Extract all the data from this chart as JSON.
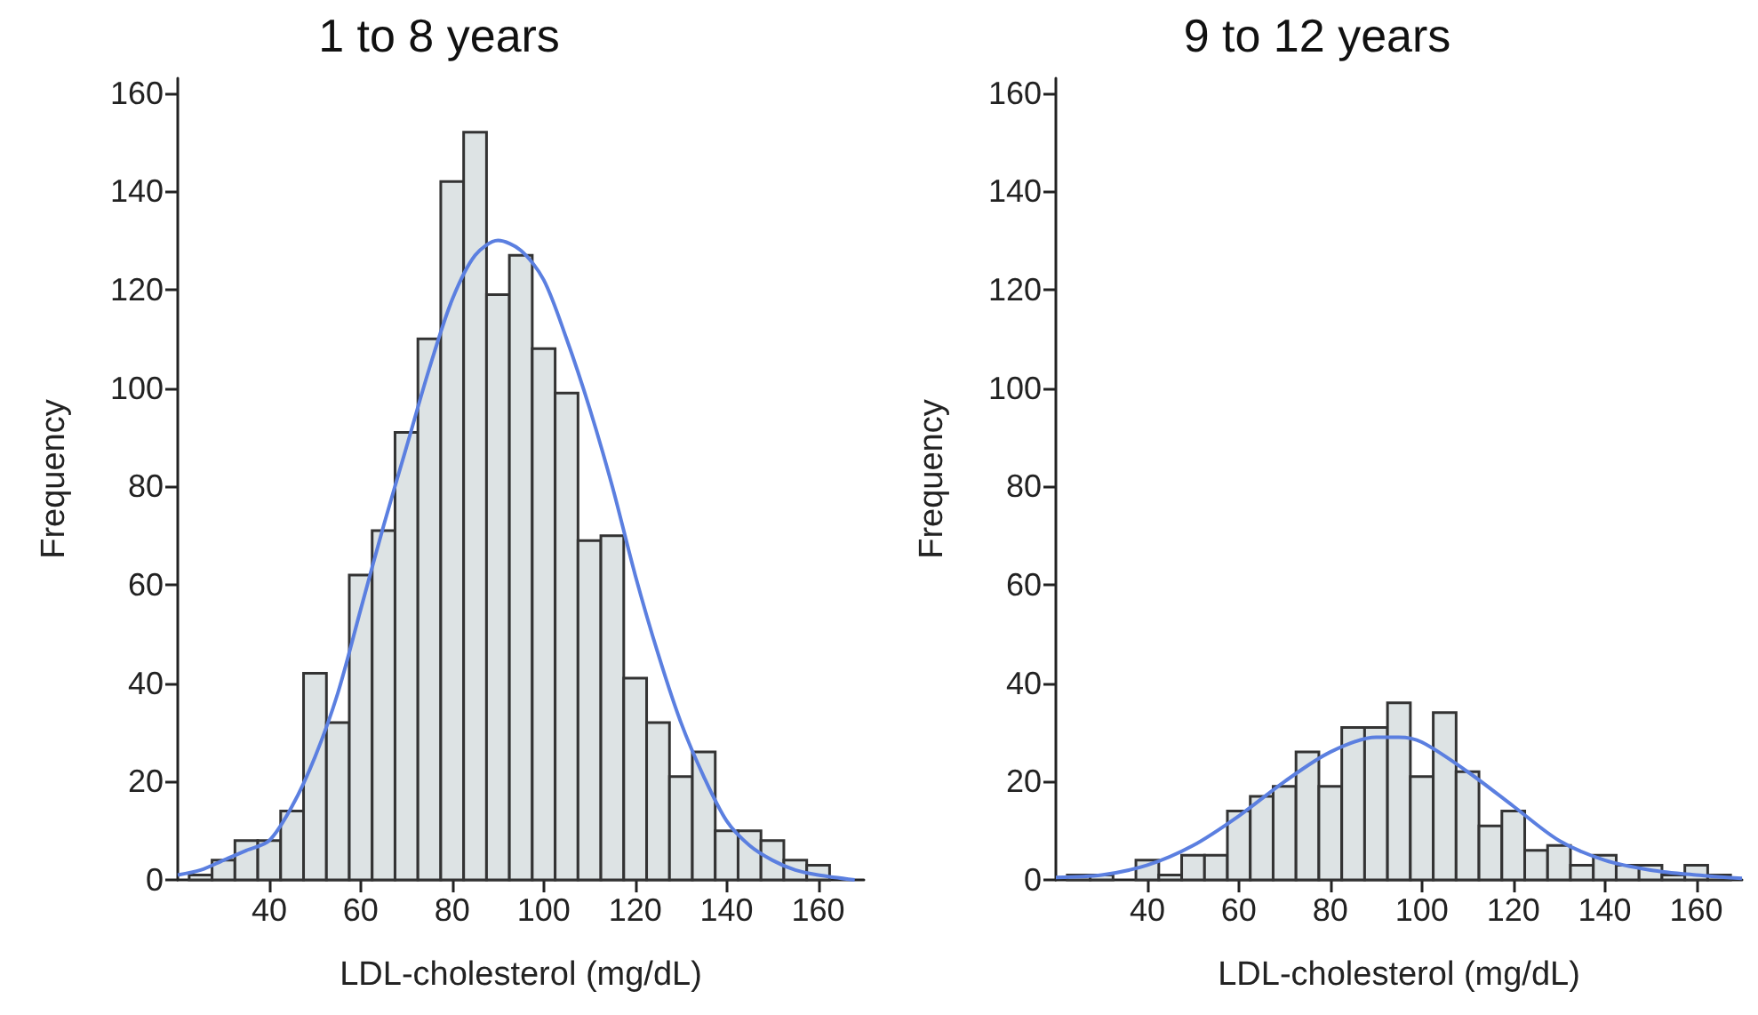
{
  "chart_data": [
    {
      "type": "histogram",
      "title": "1 to 8 years",
      "xlabel": "LDL-cholesterol (mg/dL)",
      "ylabel": "Frequency",
      "xlim": [
        20,
        170
      ],
      "xticks": [
        40,
        60,
        80,
        100,
        120,
        140,
        160
      ],
      "ylim": [
        0,
        163
      ],
      "yticks": [
        0,
        20,
        40,
        60,
        80,
        100,
        120,
        140,
        160
      ],
      "series": [
        {
          "color": "#dde3e4",
          "bins": [
            22.5,
            27.5,
            32.5,
            37.5,
            42.5,
            47.5,
            52.5,
            57.5,
            62.5,
            67.5,
            72.5,
            77.5,
            82.5,
            87.5,
            92.5,
            97.5,
            102.5,
            107.5,
            112.5,
            117.5,
            122.5,
            127.5,
            132.5,
            137.5,
            142.5,
            147.5,
            152.5,
            157.5,
            162.5
          ],
          "values": [
            1,
            4,
            8,
            8,
            14,
            42,
            32,
            62,
            71,
            91,
            110,
            142,
            152,
            119,
            127,
            108,
            99,
            69,
            70,
            41,
            32,
            21,
            26,
            10,
            10,
            8,
            4,
            3
          ]
        },
        {
          "type": "line",
          "color": "#5b7fe0",
          "x": [
            20,
            25,
            30,
            35,
            40,
            45,
            50,
            55,
            60,
            65,
            70,
            75,
            80,
            85,
            90,
            95,
            100,
            105,
            110,
            115,
            120,
            125,
            130,
            135,
            140,
            145,
            150,
            155,
            160,
            168
          ],
          "values": [
            1,
            2,
            4,
            6,
            8,
            15,
            25,
            38,
            55,
            72,
            88,
            104,
            118,
            127,
            130,
            128,
            122,
            110,
            96,
            80,
            62,
            46,
            32,
            21,
            12,
            7,
            4,
            2,
            1,
            0
          ]
        }
      ]
    },
    {
      "type": "histogram",
      "title": "9 to 12 years",
      "xlabel": "LDL-cholesterol (mg/dL)",
      "ylabel": "Frequency",
      "xlim": [
        20,
        170
      ],
      "xticks": [
        40,
        60,
        80,
        100,
        120,
        140,
        160
      ],
      "ylim": [
        0,
        163
      ],
      "yticks": [
        0,
        20,
        40,
        60,
        80,
        100,
        120,
        140,
        160
      ],
      "series": [
        {
          "color": "#dde3e4",
          "bins": [
            22.5,
            27.5,
            32.5,
            37.5,
            42.5,
            47.5,
            52.5,
            57.5,
            62.5,
            67.5,
            72.5,
            77.5,
            82.5,
            87.5,
            92.5,
            97.5,
            102.5,
            107.5,
            112.5,
            117.5,
            122.5,
            127.5,
            132.5,
            137.5,
            142.5,
            147.5,
            152.5,
            157.5,
            162.5,
            167.5
          ],
          "values": [
            1,
            1,
            0,
            4,
            1,
            5,
            5,
            14,
            17,
            19,
            26,
            19,
            31,
            31,
            36,
            21,
            34,
            22,
            11,
            14,
            6,
            7,
            3,
            5,
            3,
            3,
            1,
            3,
            1
          ]
        },
        {
          "type": "line",
          "color": "#5b7fe0",
          "x": [
            20,
            30,
            40,
            50,
            60,
            70,
            80,
            90,
            95,
            100,
            110,
            120,
            130,
            140,
            150,
            160,
            170
          ],
          "values": [
            0.5,
            1,
            3,
            7,
            13,
            20,
            26,
            29,
            29,
            28,
            22,
            15,
            8,
            4,
            2,
            1,
            0.3
          ]
        }
      ]
    }
  ]
}
